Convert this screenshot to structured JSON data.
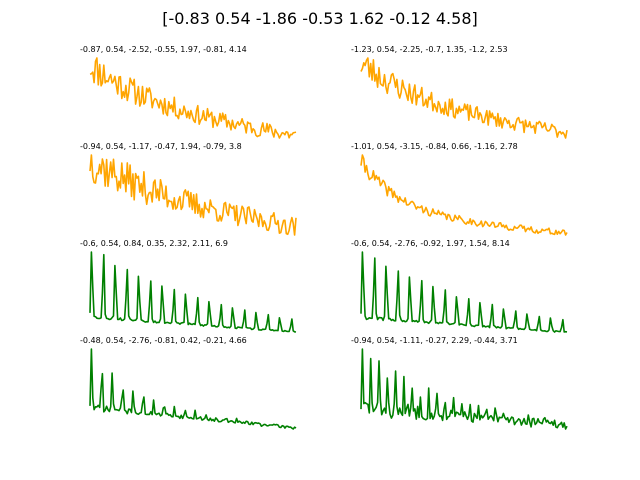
{
  "title": "[-0.83  0.54 -1.86 -0.53  1.62 -0.12  4.58]",
  "chart_data": [
    {
      "type": "line",
      "title": "-0.87, 0.54, -2.52, -0.55, 1.97, -0.81, 4.14",
      "color": "#ffa500",
      "params": {
        "decay": 0.018,
        "period": 0,
        "amp": 0.55,
        "noise": 0.55,
        "seed": 11
      }
    },
    {
      "type": "line",
      "title": "-1.23, 0.54, -2.25, -0.7, 1.35, -1.2, 2.53",
      "color": "#ffa500",
      "params": {
        "decay": 0.02,
        "period": 0,
        "amp": 0.5,
        "noise": 0.5,
        "seed": 23
      }
    },
    {
      "type": "line",
      "title": "-0.94, 0.54, -1.17, -0.47, 1.94, -0.79, 3.8",
      "color": "#ffa500",
      "params": {
        "decay": 0.015,
        "period": 0,
        "amp": 0.55,
        "noise": 0.7,
        "seed": 37
      }
    },
    {
      "type": "line",
      "title": "-1.01, 0.54, -3.15, -0.84, 0.66, -1.16, 2.78",
      "color": "#ffa500",
      "params": {
        "decay": 0.035,
        "period": 0,
        "amp": 0.8,
        "noise": 0.35,
        "seed": 41
      }
    },
    {
      "type": "line",
      "title": "-0.6, 0.54, 0.84, 0.35, 2.32, 2.11, 6.9",
      "color": "#008000",
      "params": {
        "decay": 0.012,
        "period": 8.5,
        "amp": 1.0,
        "noise": 0.08,
        "seed": 53
      }
    },
    {
      "type": "line",
      "title": "-0.6, 0.54, -2.76, -0.92, 1.97, 1.54, 8.14",
      "color": "#008000",
      "params": {
        "decay": 0.012,
        "period": 8.5,
        "amp": 1.0,
        "noise": 0.08,
        "seed": 61
      }
    },
    {
      "type": "line",
      "title": "-0.48, 0.54, -2.76, -0.81, 0.42, -0.21, 4.66",
      "color": "#008000",
      "params": {
        "decay": 0.03,
        "period": 7.5,
        "amp": 0.6,
        "noise": 0.15,
        "seed": 71
      }
    },
    {
      "type": "line",
      "title": "-0.94, 0.54, -1.11, -0.27, 2.29, -0.44, 3.71",
      "color": "#008000",
      "params": {
        "decay": 0.02,
        "period": 6,
        "amp": 0.6,
        "noise": 0.45,
        "seed": 83
      }
    }
  ]
}
